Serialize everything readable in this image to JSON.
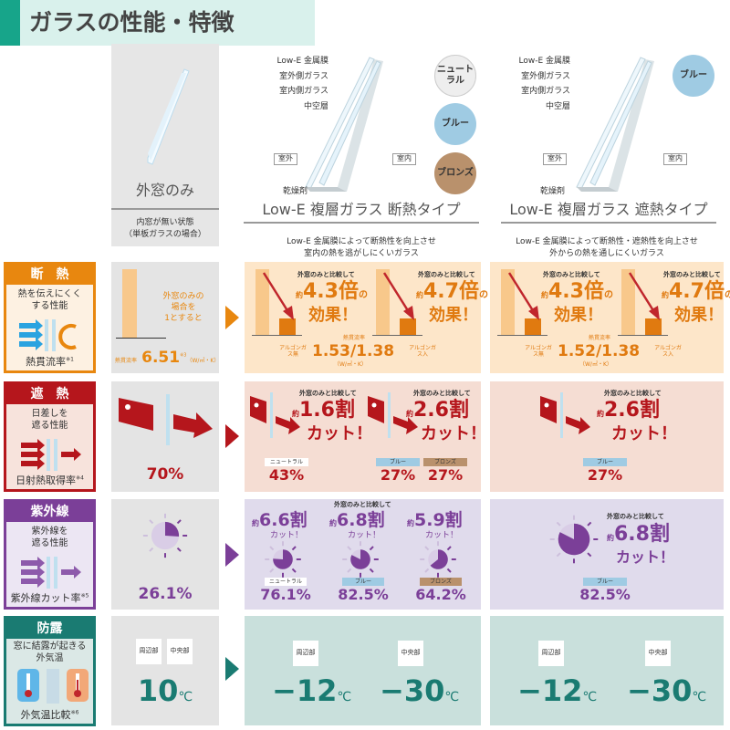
{
  "title": "ガラスの性能・特徴",
  "colors": {
    "heat": "#e8870f",
    "shade": "#b5161c",
    "uv": "#7b3f98",
    "dew": "#1a7b72",
    "neutral": "#eeeeee",
    "blue": "#9fcbe3",
    "bronze": "#b9916c"
  },
  "header": {
    "col1": {
      "name": "外窓のみ",
      "sub1": "内窓が無い状態",
      "sub2": "（単板ガラスの場合）"
    },
    "col2": {
      "labels": [
        "Low-E 金属膜",
        "室外側ガラス",
        "室内側ガラス",
        "中空層"
      ],
      "outside": "室外",
      "inside": "室内",
      "desiccant": "乾燥剤",
      "swatches": [
        "ニュートラル",
        "ブルー",
        "ブロンズ"
      ],
      "name": "Low-E 複層ガラス 断熱タイプ",
      "desc1": "Low-E 金属膜によって断熱性を向上させ",
      "desc2": "室内の熱を逃がしにくいガラス"
    },
    "col3": {
      "labels": [
        "Low-E 金属膜",
        "室外側ガラス",
        "室内側ガラス",
        "中空層"
      ],
      "outside": "室外",
      "inside": "室内",
      "desiccant": "乾燥剤",
      "swatches": [
        "ブルー"
      ],
      "name": "Low-E 複層ガラス 遮熱タイプ",
      "desc1": "Low-E 金属膜によって断熱性・遮熱性を向上させ",
      "desc2": "外からの熱を通しにくいガラス"
    }
  },
  "rows": {
    "heat": {
      "label": "断　熱",
      "desc1": "熱を伝えにくく",
      "desc2": "する性能",
      "metric": "熱貫流率",
      "note": "※1",
      "col1": {
        "text1": "外窓のみの",
        "text2": "場合を",
        "text3": "1とすると",
        "metric": "熱貫流率",
        "value": "6.51",
        "note": "※3",
        "unit": "（W/㎡・K）"
      },
      "col2": {
        "items": [
          {
            "compare": "外窓のみと比較して",
            "prefix": "約",
            "value": "4.3倍",
            "suffix": "の",
            "effect": "効果！"
          },
          {
            "compare": "外窓のみと比較して",
            "prefix": "約",
            "value": "4.7倍",
            "suffix": "の",
            "effect": "効果！"
          }
        ],
        "metric": "熱貫流率",
        "left": "アルゴンガス無",
        "value": "1.53/1.38",
        "right": "アルゴンガス入",
        "unit": "（W/㎡・K）"
      },
      "col3": {
        "items": [
          {
            "compare": "外窓のみと比較して",
            "prefix": "約",
            "value": "4.3倍",
            "suffix": "の",
            "effect": "効果！"
          },
          {
            "compare": "外窓のみと比較して",
            "prefix": "約",
            "value": "4.7倍",
            "suffix": "の",
            "effect": "効果！"
          }
        ],
        "metric": "熱貫流率",
        "left": "アルゴンガス無",
        "value": "1.52/1.38",
        "right": "アルゴンガス入",
        "unit": "（W/㎡・K）"
      }
    },
    "shade": {
      "label": "遮　熱",
      "desc1": "日差しを",
      "desc2": "遮る性能",
      "metric": "日射熱取得率",
      "note": "※4",
      "col1": {
        "value": "70%"
      },
      "col2": {
        "items": [
          {
            "compare": "外窓のみと比較して",
            "prefix": "約",
            "value": "1.6割",
            "effect": "カット！"
          },
          {
            "compare": "外窓のみと比較して",
            "prefix": "約",
            "value": "2.6割",
            "effect": "カット！"
          }
        ],
        "results": [
          {
            "color": "ニュートラル",
            "value": "43%"
          },
          {
            "color": "ブルー",
            "value": "27%"
          },
          {
            "color": "ブロンズ",
            "value": "27%"
          }
        ]
      },
      "col3": {
        "compare": "外窓のみと比較して",
        "prefix": "約",
        "value": "2.6割",
        "effect": "カット！",
        "results": [
          {
            "color": "ブルー",
            "value": "27%"
          }
        ]
      }
    },
    "uv": {
      "label": "紫外線",
      "desc1": "紫外線を",
      "desc2": "遮る性能",
      "metric": "紫外線カット率",
      "note": "※5",
      "col1": {
        "value": "26.1%"
      },
      "col2": {
        "compare": "外窓のみと比較して",
        "items": [
          {
            "prefix": "約",
            "value": "6.6割",
            "effect": "カット！",
            "color": "ニュートラル",
            "result": "76.1%"
          },
          {
            "prefix": "約",
            "value": "6.8割",
            "effect": "カット！",
            "color": "ブルー",
            "result": "82.5%"
          },
          {
            "prefix": "約",
            "value": "5.9割",
            "effect": "カット！",
            "color": "ブロンズ",
            "result": "64.2%"
          }
        ]
      },
      "col3": {
        "compare": "外窓のみと比較して",
        "prefix": "約",
        "value": "6.8割",
        "effect": "カット！",
        "color": "ブルー",
        "result": "82.5%"
      }
    },
    "dew": {
      "label": "防露",
      "desc1": "窓に結露が起きる",
      "desc2": "外気温",
      "metric": "外気温比較",
      "note": "※6",
      "col1": {
        "edge": "周辺部",
        "center": "中央部",
        "value": "10",
        "unit": "℃"
      },
      "col2": {
        "edge": "周辺部",
        "center": "中央部",
        "edge_value": "−12",
        "center_value": "−30",
        "unit": "℃"
      },
      "col3": {
        "edge": "周辺部",
        "center": "中央部",
        "edge_value": "−12",
        "center_value": "−30",
        "unit": "℃"
      }
    }
  }
}
